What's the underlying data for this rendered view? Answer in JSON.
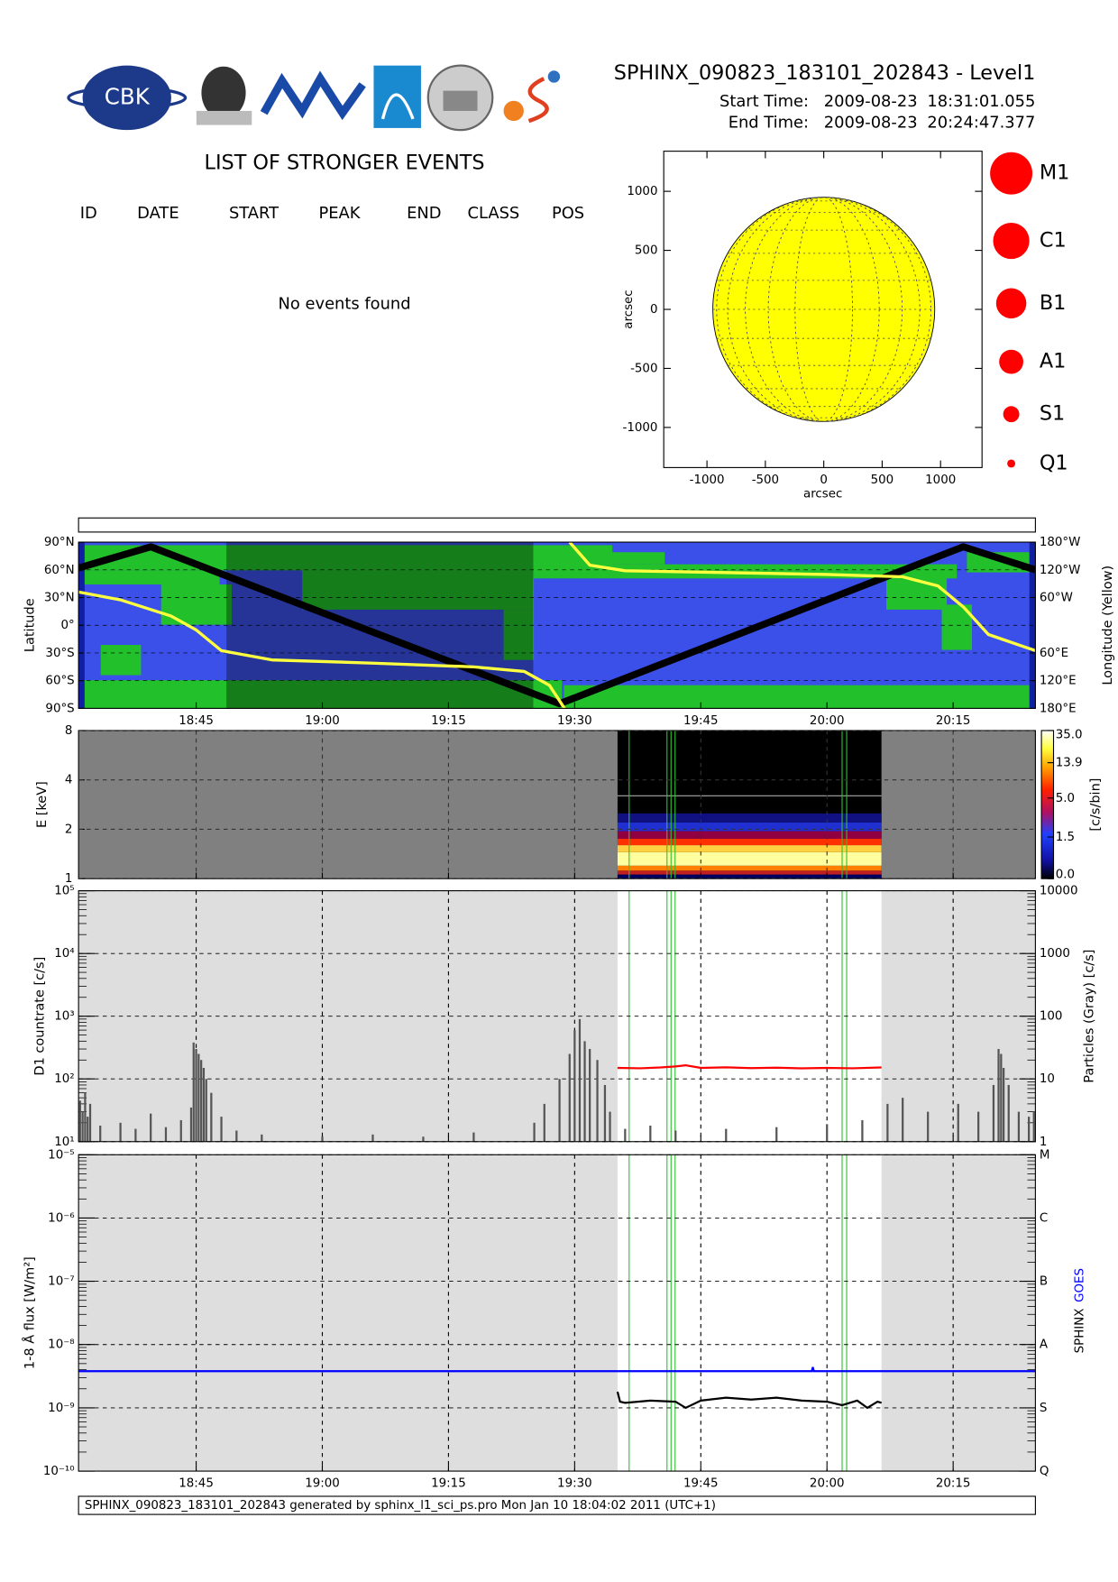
{
  "header": {
    "title": "SPHINX_090823_183101_202843 - Level1",
    "logo_text": "CBK",
    "start_label": "Start Time:",
    "start_date": "2009-08-23",
    "start_time": "18:31:01.055",
    "end_label": "End Time:",
    "end_date": "2009-08-23",
    "end_time": "20:24:47.377"
  },
  "events": {
    "title": "LIST OF STRONGER EVENTS",
    "columns": [
      "ID",
      "DATE",
      "START",
      "PEAK",
      "END",
      "CLASS",
      "POS"
    ],
    "message": "No events found"
  },
  "flare_classes": [
    "M1",
    "C1",
    "B1",
    "A1",
    "S1",
    "Q1"
  ],
  "footer": "SPHINX_090823_183101_202843 generated by sphinx_l1_sci_ps.pro Mon Jan 10 18:04:02 2011 (UTC+1)",
  "chart_data": [
    {
      "type": "disk",
      "x_label": "arcsec",
      "y_label": "arcsec",
      "xlim": [
        -1370,
        1355
      ],
      "ylim": [
        -1340,
        1340
      ],
      "xticks": [
        -1000,
        -500,
        0,
        500,
        1000
      ],
      "yticks": [
        -1000,
        -500,
        0,
        500,
        1000
      ],
      "disk_radius": 950,
      "disk_color": "#ffff00",
      "grid": true
    },
    {
      "type": "ground-track",
      "y_label": "Latitude",
      "y2_label": "Longitude (Yellow)",
      "xlim": [
        18.517,
        20.413
      ],
      "xticks": [
        {
          "value": 18.75,
          "label": "18:45"
        },
        {
          "value": 19,
          "label": "19:00"
        },
        {
          "value": 19.25,
          "label": "19:15"
        },
        {
          "value": 19.5,
          "label": "19:30"
        },
        {
          "value": 19.75,
          "label": "19:45"
        },
        {
          "value": 20,
          "label": "20:00"
        },
        {
          "value": 20.25,
          "label": "20:15"
        }
      ],
      "ylim": [
        -90,
        90
      ],
      "yticks": [
        {
          "value": -90,
          "label": "90°S"
        },
        {
          "value": -60,
          "label": "60°S"
        },
        {
          "value": -30,
          "label": "30°S"
        },
        {
          "value": 0,
          "label": "0°"
        },
        {
          "value": 30,
          "label": "30°N"
        },
        {
          "value": 60,
          "label": "60°N"
        },
        {
          "value": 90,
          "label": "90°N"
        }
      ],
      "y2lim": [
        180,
        -180
      ],
      "y2ticks": [
        {
          "value": -180,
          "label": "180°W"
        },
        {
          "value": -120,
          "label": "120°W"
        },
        {
          "value": -60,
          "label": "60°W"
        },
        {
          "value": 60,
          "label": "60°E"
        },
        {
          "value": 120,
          "label": "120°E"
        },
        {
          "value": 180,
          "label": "180°E"
        }
      ],
      "shaded": [
        18.81,
        19.418
      ],
      "grid": true,
      "series": [
        {
          "color": "#000000",
          "x": [
            18.517,
            18.66,
            19.47,
            20.27,
            20.413
          ],
          "values": [
            62,
            85,
            -85,
            85,
            60
          ]
        },
        {
          "color": "#ffff40",
          "axis": "y2",
          "x": [
            18.517,
            18.6,
            18.7,
            18.75,
            18.8,
            18.9,
            19.1,
            19.3,
            19.4,
            19.45,
            19.48,
            19.485,
            19.49,
            19.53,
            19.6,
            19.75,
            20.0,
            20.15,
            20.22,
            20.27,
            20.32,
            20.413
          ],
          "values": [
            -72,
            -55,
            -20,
            10,
            55,
            75,
            82,
            90,
            100,
            130,
            180,
            null,
            -180,
            -130,
            -118,
            -115,
            -110,
            -105,
            -85,
            -40,
            20,
            55
          ]
        }
      ]
    },
    {
      "type": "spectrogram",
      "y_label": "E [keV]",
      "colorbar_label": "[c/s/bin]",
      "log": true,
      "xlim": [
        18.517,
        20.413
      ],
      "xticks": [
        18.75,
        19,
        19.25,
        19.5,
        19.75,
        20,
        20.25
      ],
      "ylim": [
        1,
        8
      ],
      "yticks": [
        1,
        2,
        4,
        8
      ],
      "colorbar_ticks": [
        {
          "value": 0,
          "label": "0.0"
        },
        1.5,
        {
          "value": 5,
          "label": "5.0"
        },
        13.9,
        {
          "value": 35,
          "label": "35.0"
        }
      ],
      "coverage": [
        19.585,
        20.108
      ],
      "markers": [
        19.608,
        19.683,
        19.691,
        19.699,
        20.03,
        20.039
      ],
      "grid": true
    },
    {
      "type": "line",
      "log": true,
      "y_label": "D1 countrate [c/s]",
      "y2_label": "Particles (Gray) [c/s]",
      "xlim": [
        18.517,
        20.413
      ],
      "xticks": [
        18.75,
        19,
        19.25,
        19.5,
        19.75,
        20,
        20.25
      ],
      "ylim": [
        10,
        100000
      ],
      "yticks": [
        {
          "value": 10,
          "label": "10¹"
        },
        {
          "value": 100,
          "label": "10²"
        },
        {
          "value": 1000,
          "label": "10³"
        },
        {
          "value": 10000,
          "label": "10⁴"
        },
        {
          "value": 100000,
          "label": "10⁵"
        }
      ],
      "y2lim": [
        1,
        10000
      ],
      "y2ticks": [
        1,
        10,
        100,
        1000,
        10000
      ],
      "coverage": [
        19.585,
        20.108
      ],
      "markers": [
        19.608,
        19.683,
        19.691,
        19.699,
        20.03,
        20.039
      ],
      "grid": true,
      "series": [
        {
          "type": "bar",
          "axis": "y2",
          "color": "#555555",
          "x": [
            18.52,
            18.525,
            18.53,
            18.535,
            18.54,
            18.56,
            18.6,
            18.63,
            18.66,
            18.69,
            18.72,
            18.74,
            18.745,
            18.75,
            18.755,
            18.76,
            18.765,
            18.77,
            18.78,
            18.8,
            18.83,
            18.88,
            19.0,
            19.1,
            19.2,
            19.3,
            19.42,
            19.44,
            19.47,
            19.49,
            19.5,
            19.51,
            19.52,
            19.53,
            19.545,
            19.56,
            19.57,
            19.6,
            19.65,
            19.7,
            19.8,
            19.9,
            20.0,
            20.07,
            20.12,
            20.15,
            20.2,
            20.26,
            20.3,
            20.33,
            20.34,
            20.345,
            20.35,
            20.36,
            20.38,
            20.4,
            20.41
          ],
          "values": [
            4.5,
            3,
            6,
            2.5,
            4,
            1.8,
            2,
            1.6,
            2.8,
            1.7,
            2.2,
            3.5,
            38,
            30,
            25,
            20,
            15,
            10,
            6,
            2.5,
            1.5,
            1.3,
            1.2,
            1.3,
            1.2,
            1.4,
            2,
            4,
            10,
            25,
            60,
            90,
            40,
            30,
            20,
            8,
            3,
            1.6,
            1.8,
            1.5,
            1.6,
            1.7,
            1.9,
            2.2,
            4,
            5,
            3,
            4,
            3,
            8,
            30,
            25,
            15,
            8,
            3,
            2.5,
            3
          ]
        },
        {
          "color": "#ff0000",
          "x": [
            19.585,
            19.63,
            19.67,
            19.7,
            19.72,
            19.75,
            19.8,
            19.85,
            19.9,
            19.95,
            20.0,
            20.05,
            20.108
          ],
          "values": [
            150,
            148,
            152,
            158,
            165,
            150,
            153,
            149,
            151,
            147,
            150,
            148,
            152
          ]
        }
      ]
    },
    {
      "type": "line",
      "log": true,
      "y_label": "1-8 Å flux [W/m²]",
      "xlim": [
        18.517,
        20.413
      ],
      "xticks": [
        {
          "value": 18.75,
          "label": "18:45"
        },
        {
          "value": 19,
          "label": "19:00"
        },
        {
          "value": 19.25,
          "label": "19:15"
        },
        {
          "value": 19.5,
          "label": "19:30"
        },
        {
          "value": 19.75,
          "label": "19:45"
        },
        {
          "value": 20,
          "label": "20:00"
        },
        {
          "value": 20.25,
          "label": "20:15"
        }
      ],
      "ylim": [
        1e-10,
        1e-05
      ],
      "yticks": [
        {
          "value": 1e-10,
          "label": "10⁻¹⁰"
        },
        {
          "value": 1e-09,
          "label": "10⁻⁹"
        },
        {
          "value": 1e-08,
          "label": "10⁻⁸"
        },
        {
          "value": 1e-07,
          "label": "10⁻⁷"
        },
        {
          "value": 1e-06,
          "label": "10⁻⁶"
        },
        {
          "value": 1e-05,
          "label": "10⁻⁵"
        }
      ],
      "y2lim": [
        1e-10,
        1e-05
      ],
      "y2ticks": [
        {
          "value": 1e-10,
          "label": "Q"
        },
        {
          "value": 1e-09,
          "label": "S"
        },
        {
          "value": 1e-08,
          "label": "A"
        },
        {
          "value": 1e-07,
          "label": "B"
        },
        {
          "value": 1e-06,
          "label": "C"
        },
        {
          "value": 1e-05,
          "label": "M"
        }
      ],
      "coverage": [
        19.585,
        20.108
      ],
      "markers": [
        19.608,
        19.683,
        19.691,
        19.699,
        20.03,
        20.039
      ],
      "grid": true,
      "series": [
        {
          "name": "SPHINX",
          "color": "#000000",
          "x": [
            19.585,
            19.59,
            19.6,
            19.65,
            19.7,
            19.72,
            19.75,
            19.8,
            19.85,
            19.9,
            19.95,
            20.0,
            20.03,
            20.06,
            20.08,
            20.1,
            20.108
          ],
          "values": [
            1.8e-09,
            1.25e-09,
            1.2e-09,
            1.3e-09,
            1.25e-09,
            1e-09,
            1.3e-09,
            1.45e-09,
            1.35e-09,
            1.45e-09,
            1.3e-09,
            1.25e-09,
            1.1e-09,
            1.3e-09,
            1e-09,
            1.25e-09,
            1.2e-09
          ]
        },
        {
          "name": "GOES",
          "color": "#0000ff",
          "x": [
            18.517,
            19.97,
            19.972,
            19.974,
            20.413
          ],
          "values": [
            3.8e-09,
            3.8e-09,
            4.4e-09,
            3.8e-09,
            3.8e-09
          ]
        }
      ]
    }
  ]
}
